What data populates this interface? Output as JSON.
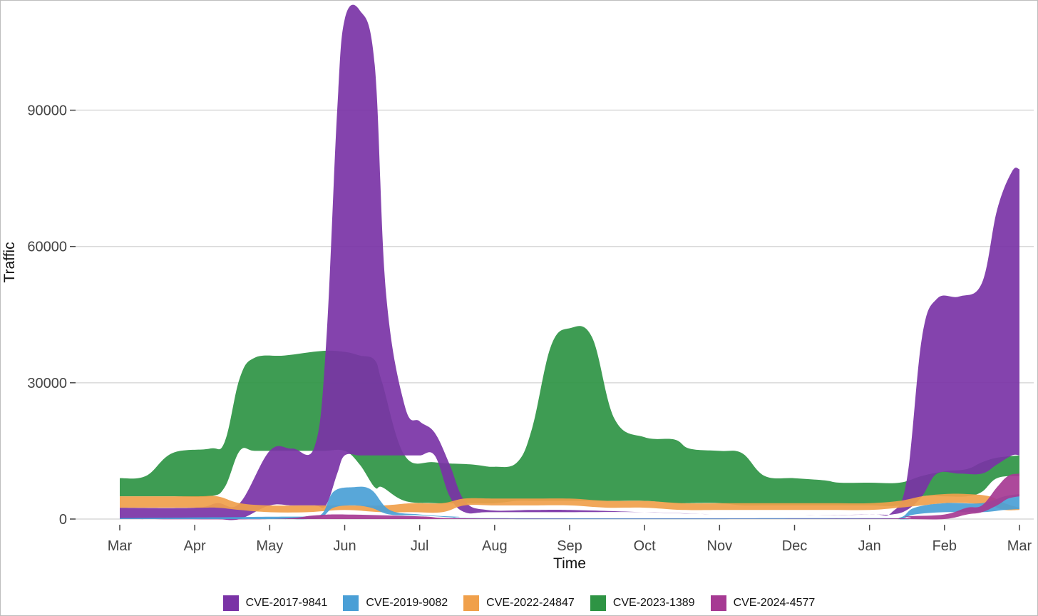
{
  "chart_data": {
    "type": "area",
    "title": "",
    "xlabel": "Time",
    "ylabel": "Traffic",
    "categories": [
      "Mar",
      "Apr",
      "May",
      "Jun",
      "Jul",
      "Aug",
      "Sep",
      "Oct",
      "Nov",
      "Dec",
      "Jan",
      "Feb",
      "Mar"
    ],
    "y_ticks": [
      0,
      30000,
      60000,
      90000
    ],
    "ylim": [
      0,
      113000
    ],
    "grid": true,
    "legend_position": "bottom",
    "series": [
      {
        "name": "CVE-2023-1389",
        "color": "#2e9444",
        "points": [
          [
            0.0,
            5000,
            9000
          ],
          [
            0.35,
            5000,
            9500
          ],
          [
            0.7,
            5000,
            14500
          ],
          [
            1.2,
            5000,
            15500
          ],
          [
            1.4,
            7000,
            17000
          ],
          [
            1.6,
            15000,
            31000
          ],
          [
            1.8,
            15000,
            35500
          ],
          [
            2.2,
            15000,
            36000
          ],
          [
            2.7,
            15000,
            37000
          ],
          [
            3.0,
            15000,
            36800
          ],
          [
            3.2,
            12000,
            36000
          ],
          [
            3.4,
            7000,
            35000
          ],
          [
            3.5,
            7000,
            30000
          ],
          [
            3.8,
            4000,
            14000
          ],
          [
            4.2,
            3500,
            12500
          ],
          [
            4.7,
            3500,
            12000
          ],
          [
            5.0,
            3500,
            11500
          ],
          [
            5.3,
            4000,
            12500
          ],
          [
            5.5,
            4000,
            20000
          ],
          [
            5.75,
            4000,
            38000
          ],
          [
            6.0,
            4000,
            42000
          ],
          [
            6.3,
            4000,
            40000
          ],
          [
            6.6,
            4000,
            22000
          ],
          [
            7.0,
            4000,
            18000
          ],
          [
            7.4,
            3500,
            17500
          ],
          [
            7.6,
            3500,
            15500
          ],
          [
            8.0,
            3500,
            15000
          ],
          [
            8.3,
            3000,
            14500
          ],
          [
            8.6,
            3000,
            9500
          ],
          [
            9.0,
            3000,
            9000
          ],
          [
            9.4,
            3000,
            8500
          ],
          [
            9.6,
            3000,
            8000
          ],
          [
            10.0,
            3000,
            8000
          ],
          [
            10.4,
            3000,
            8000
          ],
          [
            10.7,
            5000,
            9500
          ],
          [
            11.0,
            5000,
            10500
          ],
          [
            11.3,
            5000,
            11000
          ],
          [
            11.5,
            6000,
            12500
          ],
          [
            11.7,
            9000,
            13500
          ],
          [
            12.0,
            9500,
            14000
          ]
        ]
      },
      {
        "name": "CVE-2017-9841",
        "color": "#7a33a6",
        "points": [
          [
            0.0,
            0,
            2500
          ],
          [
            1.0,
            0,
            2500
          ],
          [
            1.3,
            0,
            3500
          ],
          [
            1.6,
            0,
            3500
          ],
          [
            2.0,
            3000,
            15000
          ],
          [
            2.3,
            3000,
            15500
          ],
          [
            2.6,
            3000,
            16000
          ],
          [
            2.75,
            3000,
            38000
          ],
          [
            2.9,
            10000,
            90000
          ],
          [
            3.0,
            14000,
            110000
          ],
          [
            3.2,
            14000,
            112000
          ],
          [
            3.4,
            14000,
            100000
          ],
          [
            3.55,
            14000,
            50000
          ],
          [
            3.8,
            14000,
            25000
          ],
          [
            4.0,
            14000,
            21500
          ],
          [
            4.2,
            14000,
            19000
          ],
          [
            4.4,
            5000,
            12000
          ],
          [
            4.6,
            1500,
            4000
          ],
          [
            4.9,
            1500,
            2000
          ],
          [
            5.5,
            1500,
            2000
          ],
          [
            6.0,
            1500,
            2000
          ],
          [
            7.0,
            1500,
            1500
          ],
          [
            8.0,
            1000,
            1000
          ],
          [
            9.0,
            800,
            800
          ],
          [
            10.0,
            1000,
            1000
          ],
          [
            10.3,
            1000,
            1500
          ],
          [
            10.5,
            2000,
            9000
          ],
          [
            10.7,
            5000,
            40000
          ],
          [
            10.9,
            10000,
            48500
          ],
          [
            11.2,
            10000,
            49000
          ],
          [
            11.5,
            10000,
            52000
          ],
          [
            11.7,
            12000,
            68000
          ],
          [
            11.9,
            14000,
            76500
          ],
          [
            12.0,
            14000,
            77000
          ]
        ]
      },
      {
        "name": "CVE-2022-24847",
        "color": "#f0a04b",
        "points": [
          [
            0.0,
            2500,
            5000
          ],
          [
            1.0,
            2500,
            5000
          ],
          [
            1.3,
            2500,
            5000
          ],
          [
            1.6,
            2000,
            3500
          ],
          [
            2.0,
            1500,
            3000
          ],
          [
            2.5,
            1500,
            3000
          ],
          [
            3.0,
            2000,
            3000
          ],
          [
            3.5,
            1500,
            3000
          ],
          [
            3.9,
            1500,
            3500
          ],
          [
            4.3,
            1500,
            3500
          ],
          [
            4.6,
            3000,
            4500
          ],
          [
            5.0,
            3000,
            4500
          ],
          [
            5.5,
            3000,
            4500
          ],
          [
            6.0,
            3000,
            4500
          ],
          [
            6.5,
            2500,
            4000
          ],
          [
            7.0,
            2500,
            4000
          ],
          [
            7.5,
            2000,
            3500
          ],
          [
            8.0,
            2000,
            3500
          ],
          [
            8.5,
            2000,
            3500
          ],
          [
            9.0,
            2000,
            3500
          ],
          [
            9.5,
            2000,
            3500
          ],
          [
            10.0,
            2000,
            3500
          ],
          [
            10.4,
            2500,
            4000
          ],
          [
            10.7,
            3000,
            5000
          ],
          [
            11.0,
            3500,
            5500
          ],
          [
            11.3,
            3500,
            5500
          ],
          [
            11.6,
            3000,
            5000
          ],
          [
            11.8,
            2000,
            3500
          ],
          [
            12.0,
            2000,
            2500
          ]
        ]
      },
      {
        "name": "CVE-2019-9082",
        "color": "#4a9fd6",
        "points": [
          [
            0.0,
            0,
            200
          ],
          [
            2.0,
            0,
            500
          ],
          [
            2.5,
            0,
            600
          ],
          [
            2.7,
            500,
            1200
          ],
          [
            2.85,
            2500,
            6000
          ],
          [
            3.1,
            3000,
            7000
          ],
          [
            3.35,
            2500,
            6500
          ],
          [
            3.6,
            1000,
            2000
          ],
          [
            4.0,
            800,
            1000
          ],
          [
            4.5,
            300,
            500
          ],
          [
            5.0,
            0,
            200
          ],
          [
            10.0,
            0,
            200
          ],
          [
            10.4,
            0,
            300
          ],
          [
            10.6,
            1000,
            2500
          ],
          [
            11.0,
            1500,
            3500
          ],
          [
            11.5,
            1500,
            3500
          ],
          [
            11.8,
            2000,
            5000
          ],
          [
            12.0,
            2200,
            5500
          ]
        ]
      },
      {
        "name": "CVE-2024-4577",
        "color": "#a63a93",
        "points": [
          [
            0.0,
            0,
            0
          ],
          [
            2.0,
            0,
            0
          ],
          [
            2.6,
            0,
            800
          ],
          [
            3.0,
            0,
            1000
          ],
          [
            4.0,
            0,
            600
          ],
          [
            5.0,
            0,
            100
          ],
          [
            10.0,
            0,
            100
          ],
          [
            10.5,
            0,
            600
          ],
          [
            11.0,
            0,
            1000
          ],
          [
            11.3,
            1000,
            2500
          ],
          [
            11.5,
            1500,
            3000
          ],
          [
            11.7,
            3000,
            7000
          ],
          [
            11.85,
            4500,
            9500
          ],
          [
            12.0,
            5000,
            10000
          ]
        ]
      }
    ],
    "legend_order": [
      "CVE-2017-9841",
      "CVE-2019-9082",
      "CVE-2022-24847",
      "CVE-2023-1389",
      "CVE-2024-4577"
    ]
  }
}
